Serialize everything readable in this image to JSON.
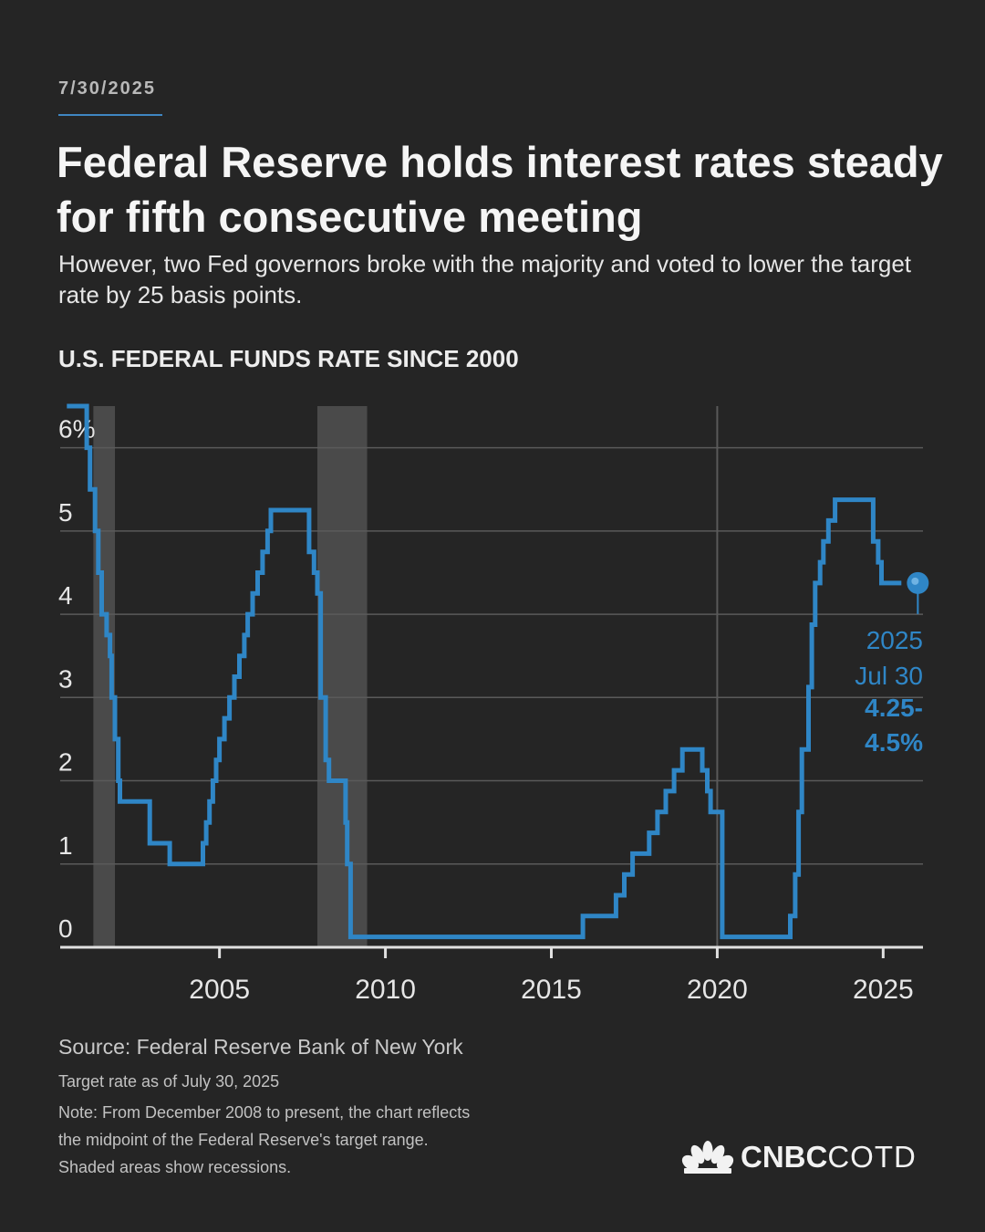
{
  "header": {
    "date": "7/30/2025",
    "headline": "Federal Reserve holds interest rates steady for fifth consecutive meeting",
    "dek": "However, two Fed governors broke with the majority and voted to lower the target rate by 25 basis points."
  },
  "chart_data": {
    "type": "line",
    "title": "U.S. FEDERAL FUNDS RATE SINCE 2000",
    "xlabel": "",
    "ylabel": "",
    "xlim": [
      2000.2,
      2026.2
    ],
    "ylim": [
      0,
      6.5
    ],
    "x_ticks": [
      2005,
      2010,
      2015,
      2020,
      2025
    ],
    "x_tick_labels": [
      "2005",
      "2010",
      "2015",
      "2020",
      "2025"
    ],
    "y_ticks": [
      0,
      1,
      2,
      3,
      4,
      5,
      6
    ],
    "y_tick_labels": [
      "0",
      "1",
      "2",
      "3",
      "4",
      "5",
      "6%"
    ],
    "grid": "horizontal",
    "colors": {
      "line": "#2f86c6",
      "recession": "#4a4a4a",
      "grid": "#5a5a5a"
    },
    "recessions": [
      {
        "start": 2001.2,
        "end": 2001.85
      },
      {
        "start": 2007.95,
        "end": 2009.45
      }
    ],
    "series": [
      {
        "name": "",
        "step": true,
        "points": [
          [
            2000.4,
            6.5
          ],
          [
            2000.95,
            6.5
          ],
          [
            2001.0,
            6.0
          ],
          [
            2001.1,
            5.5
          ],
          [
            2001.25,
            5.0
          ],
          [
            2001.35,
            4.5
          ],
          [
            2001.45,
            4.0
          ],
          [
            2001.6,
            3.75
          ],
          [
            2001.7,
            3.5
          ],
          [
            2001.75,
            3.0
          ],
          [
            2001.85,
            2.5
          ],
          [
            2001.95,
            2.0
          ],
          [
            2002.0,
            1.75
          ],
          [
            2002.9,
            1.25
          ],
          [
            2003.5,
            1.0
          ],
          [
            2004.5,
            1.25
          ],
          [
            2004.6,
            1.5
          ],
          [
            2004.7,
            1.75
          ],
          [
            2004.8,
            2.0
          ],
          [
            2004.9,
            2.25
          ],
          [
            2005.0,
            2.5
          ],
          [
            2005.15,
            2.75
          ],
          [
            2005.3,
            3.0
          ],
          [
            2005.45,
            3.25
          ],
          [
            2005.6,
            3.5
          ],
          [
            2005.75,
            3.75
          ],
          [
            2005.85,
            4.0
          ],
          [
            2006.0,
            4.25
          ],
          [
            2006.15,
            4.5
          ],
          [
            2006.3,
            4.75
          ],
          [
            2006.45,
            5.0
          ],
          [
            2006.55,
            5.25
          ],
          [
            2007.7,
            4.75
          ],
          [
            2007.85,
            4.5
          ],
          [
            2007.95,
            4.25
          ],
          [
            2008.05,
            3.0
          ],
          [
            2008.2,
            2.25
          ],
          [
            2008.3,
            2.0
          ],
          [
            2008.8,
            1.5
          ],
          [
            2008.85,
            1.0
          ],
          [
            2008.95,
            0.125
          ],
          [
            2015.95,
            0.375
          ],
          [
            2016.95,
            0.625
          ],
          [
            2017.2,
            0.875
          ],
          [
            2017.45,
            1.125
          ],
          [
            2017.95,
            1.375
          ],
          [
            2018.2,
            1.625
          ],
          [
            2018.45,
            1.875
          ],
          [
            2018.7,
            2.125
          ],
          [
            2018.95,
            2.375
          ],
          [
            2019.55,
            2.125
          ],
          [
            2019.7,
            1.875
          ],
          [
            2019.8,
            1.625
          ],
          [
            2020.15,
            0.125
          ],
          [
            2022.2,
            0.375
          ],
          [
            2022.35,
            0.875
          ],
          [
            2022.45,
            1.625
          ],
          [
            2022.55,
            2.375
          ],
          [
            2022.75,
            3.125
          ],
          [
            2022.85,
            3.875
          ],
          [
            2022.95,
            4.375
          ],
          [
            2023.1,
            4.625
          ],
          [
            2023.2,
            4.875
          ],
          [
            2023.35,
            5.125
          ],
          [
            2023.55,
            5.375
          ],
          [
            2024.7,
            4.875
          ],
          [
            2024.85,
            4.625
          ],
          [
            2024.95,
            4.375
          ],
          [
            2025.55,
            4.375
          ]
        ]
      }
    ],
    "annotation": {
      "x": 2025.55,
      "y": 4.375,
      "lines": [
        "2025",
        "Jul 30",
        "4.25-",
        "4.5%"
      ]
    }
  },
  "footer": {
    "source": "Source: Federal Reserve Bank of New York",
    "asof": "Target rate as of July 30, 2025",
    "note_lines": [
      "Note: From December 2008 to present, the chart reflects",
      "the midpoint of the Federal Reserve's target range.",
      "Shaded areas show recessions."
    ],
    "logo_left": "CNBC",
    "logo_right": "COTD",
    "logo_icon": "peacock-icon"
  }
}
